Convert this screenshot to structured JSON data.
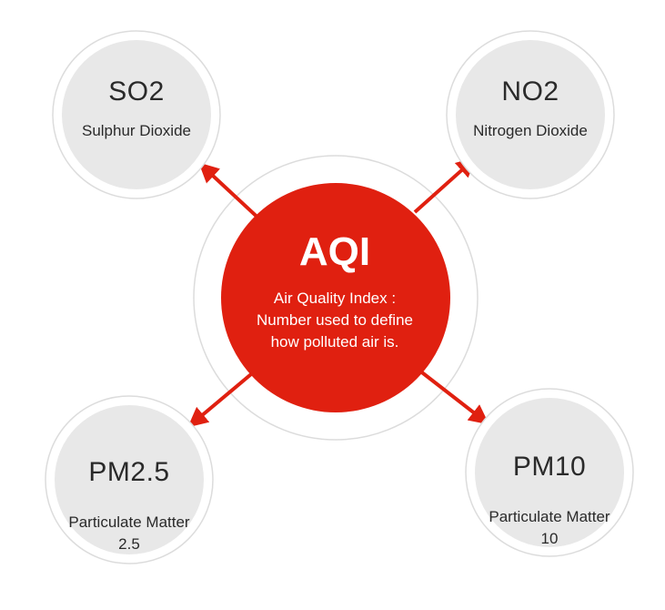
{
  "colors": {
    "accent": "#e02010",
    "node_fill": "#e8e8e8",
    "ring": "#dcdcdc",
    "text": "#2a2a2a"
  },
  "center": {
    "title": "AQI",
    "description": "Air Quality Index :\nNumber used to define\nhow polluted air is."
  },
  "nodes": [
    {
      "title": "SO2",
      "subtitle": "Sulphur Dioxide"
    },
    {
      "title": "NO2",
      "subtitle": "Nitrogen Dioxide"
    },
    {
      "title": "PM2.5",
      "subtitle": "Particulate Matter\n2.5"
    },
    {
      "title": "PM10",
      "subtitle": "Particulate Matter\n10"
    }
  ]
}
